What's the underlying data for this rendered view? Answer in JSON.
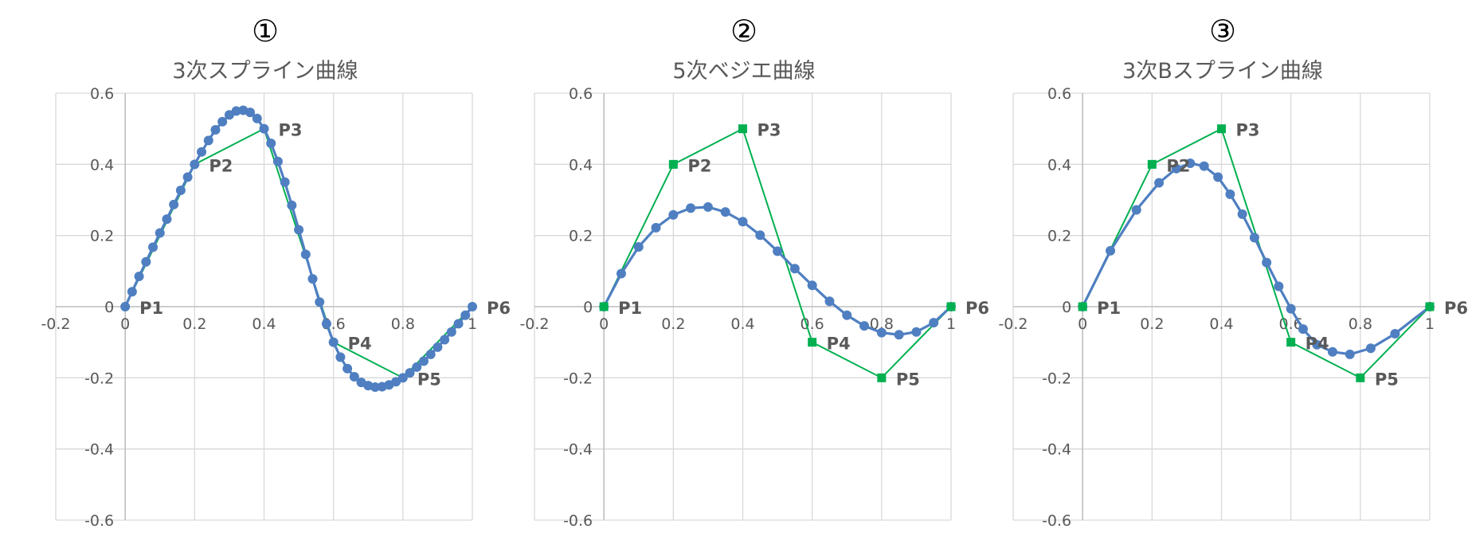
{
  "colors": {
    "curve": "#4f7fc1",
    "control_polygon": "#00b050",
    "grid": "#d9d9d9",
    "axis": "#bfbfbf",
    "text": "#595959"
  },
  "chart_data": [
    {
      "type": "line",
      "number": "①",
      "title": "3次スプライン曲線",
      "xlim": [
        -0.2,
        1
      ],
      "ylim": [
        -0.6,
        0.6
      ],
      "xticks": [
        "-0.2",
        "0",
        "0.2",
        "0.4",
        "0.6",
        "0.8",
        "1"
      ],
      "yticks": [
        "-0.6",
        "-0.4",
        "-0.2",
        "0",
        "0.2",
        "0.4",
        "0.6"
      ],
      "grid": true,
      "control_points": [
        {
          "label": "P1",
          "x": 0,
          "y": 0
        },
        {
          "label": "P2",
          "x": 0.2,
          "y": 0.4
        },
        {
          "label": "P3",
          "x": 0.4,
          "y": 0.5
        },
        {
          "label": "P4",
          "x": 0.6,
          "y": -0.1
        },
        {
          "label": "P5",
          "x": 0.8,
          "y": -0.2
        },
        {
          "label": "P6",
          "x": 1,
          "y": 0
        }
      ],
      "control_markers": false,
      "curve": {
        "x": [
          0,
          0.02,
          0.04,
          0.06,
          0.08,
          0.1,
          0.12,
          0.14,
          0.16,
          0.18,
          0.2,
          0.22,
          0.24,
          0.26,
          0.28,
          0.3,
          0.32,
          0.34,
          0.36,
          0.38,
          0.4,
          0.42,
          0.44,
          0.46,
          0.48,
          0.5,
          0.52,
          0.54,
          0.56,
          0.58,
          0.6,
          0.62,
          0.64,
          0.66,
          0.68,
          0.7,
          0.72,
          0.74,
          0.76,
          0.78,
          0.8,
          0.82,
          0.84,
          0.86,
          0.88,
          0.9,
          0.92,
          0.94,
          0.96,
          0.98,
          1
        ],
        "y": [
          0,
          0.042,
          0.085,
          0.126,
          0.167,
          0.207,
          0.246,
          0.287,
          0.327,
          0.364,
          0.4,
          0.435,
          0.467,
          0.497,
          0.52,
          0.539,
          0.55,
          0.552,
          0.546,
          0.529,
          0.5,
          0.459,
          0.408,
          0.35,
          0.285,
          0.216,
          0.147,
          0.078,
          0.013,
          -0.048,
          -0.1,
          -0.142,
          -0.174,
          -0.197,
          -0.213,
          -0.222,
          -0.226,
          -0.225,
          -0.22,
          -0.211,
          -0.2,
          -0.186,
          -0.17,
          -0.153,
          -0.134,
          -0.114,
          -0.093,
          -0.071,
          -0.048,
          -0.024,
          0
        ]
      }
    },
    {
      "type": "line",
      "number": "②",
      "title": "5次ベジエ曲線",
      "xlim": [
        -0.2,
        1
      ],
      "ylim": [
        -0.6,
        0.6
      ],
      "xticks": [
        "-0.2",
        "0",
        "0.2",
        "0.4",
        "0.6",
        "0.8",
        "1"
      ],
      "yticks": [
        "-0.6",
        "-0.4",
        "-0.2",
        "0",
        "0.2",
        "0.4",
        "0.6"
      ],
      "grid": true,
      "control_points": [
        {
          "label": "P1",
          "x": 0,
          "y": 0
        },
        {
          "label": "P2",
          "x": 0.2,
          "y": 0.4
        },
        {
          "label": "P3",
          "x": 0.4,
          "y": 0.5
        },
        {
          "label": "P4",
          "x": 0.6,
          "y": -0.1
        },
        {
          "label": "P5",
          "x": 0.8,
          "y": -0.2
        },
        {
          "label": "P6",
          "x": 1,
          "y": 0
        }
      ],
      "control_markers": true,
      "curve": {
        "x": [
          0,
          0.05,
          0.1,
          0.15,
          0.2,
          0.25,
          0.3,
          0.35,
          0.4,
          0.45,
          0.5,
          0.55,
          0.6,
          0.65,
          0.7,
          0.75,
          0.8,
          0.85,
          0.9,
          0.95,
          1
        ],
        "y": [
          0,
          0.093,
          0.168,
          0.222,
          0.258,
          0.277,
          0.28,
          0.266,
          0.239,
          0.201,
          0.156,
          0.107,
          0.06,
          0.015,
          -0.024,
          -0.054,
          -0.073,
          -0.079,
          -0.071,
          -0.045,
          0
        ]
      }
    },
    {
      "type": "line",
      "number": "③",
      "title": "3次Bスプライン曲線",
      "xlim": [
        -0.2,
        1
      ],
      "ylim": [
        -0.6,
        0.6
      ],
      "xticks": [
        "-0.2",
        "0",
        "0.2",
        "0.4",
        "0.6",
        "0.8",
        "1"
      ],
      "yticks": [
        "-0.6",
        "-0.4",
        "-0.2",
        "0",
        "0.2",
        "0.4",
        "0.6"
      ],
      "grid": true,
      "control_points": [
        {
          "label": "P1",
          "x": 0,
          "y": 0
        },
        {
          "label": "P2",
          "x": 0.2,
          "y": 0.4
        },
        {
          "label": "P3",
          "x": 0.4,
          "y": 0.5
        },
        {
          "label": "P4",
          "x": 0.6,
          "y": -0.1
        },
        {
          "label": "P5",
          "x": 0.8,
          "y": -0.2
        },
        {
          "label": "P6",
          "x": 1,
          "y": 0
        }
      ],
      "control_markers": true,
      "curve": {
        "x": [
          0,
          0.08,
          0.155,
          0.22,
          0.27,
          0.31,
          0.35,
          0.39,
          0.425,
          0.46,
          0.495,
          0.53,
          0.565,
          0.6,
          0.635,
          0.675,
          0.72,
          0.77,
          0.83,
          0.9,
          1
        ],
        "y": [
          0,
          0.157,
          0.272,
          0.348,
          0.388,
          0.403,
          0.395,
          0.364,
          0.316,
          0.26,
          0.194,
          0.124,
          0.057,
          -0.006,
          -0.063,
          -0.107,
          -0.127,
          -0.134,
          -0.117,
          -0.076,
          0
        ]
      }
    }
  ]
}
